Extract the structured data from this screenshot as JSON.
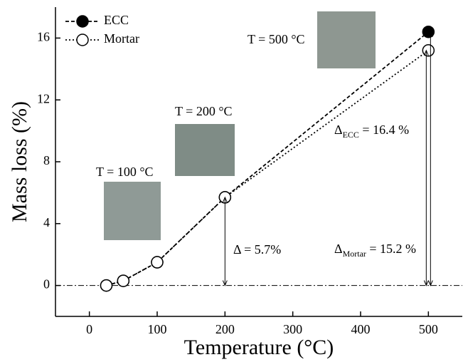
{
  "chart_data": {
    "type": "line",
    "x_label": "Temperature (°C)",
    "y_label": "Mass loss (%)",
    "x": [
      25,
      50,
      100,
      200,
      500
    ],
    "series": [
      {
        "name": "ECC",
        "color": "#000000",
        "marker": "filled",
        "dash": "dashed",
        "values": [
          0,
          0.3,
          1.5,
          5.7,
          16.4
        ]
      },
      {
        "name": "Mortar",
        "color": "#000000",
        "marker": "open",
        "dash": "dotted",
        "values": [
          0,
          0.3,
          1.5,
          5.7,
          15.2
        ]
      }
    ],
    "xlim": [
      -50,
      550
    ],
    "xticks": [
      0,
      100,
      200,
      300,
      400,
      500
    ],
    "ylim": [
      -2,
      18
    ],
    "yticks": [
      0,
      4,
      8,
      12,
      16
    ],
    "reference_line": 0,
    "legend": "upper left",
    "annotations": [
      {
        "text": "T = 100 °C"
      },
      {
        "text": "T = 200 °C"
      },
      {
        "text": "T = 500 °C"
      },
      {
        "text": "Δ = 5.7%"
      },
      {
        "text": "Δ",
        "sub": "ECC",
        "rest": " = 16.4 %"
      },
      {
        "text": "Δ",
        "sub": "Mortar",
        "rest": " = 15.2 %"
      }
    ]
  }
}
